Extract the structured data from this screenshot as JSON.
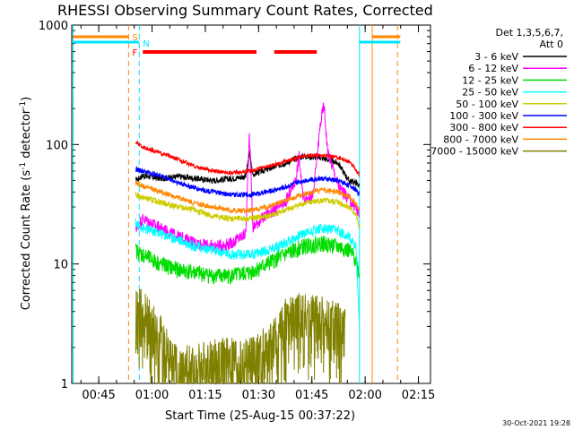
{
  "chart_data": {
    "type": "line",
    "title": "RHESSI Observing Summary Count Rates, Corrected",
    "xlabel": "Start Time (25-Aug-15 00:37:22)",
    "ylabel": "Corrected Count Rate (s",
    "ylabel_sup1": "-1",
    "ylabel_mid": " detector",
    "ylabel_sup2": "-1",
    "ylabel_end": ")",
    "y_scale": "log",
    "ylim": [
      1,
      1000
    ],
    "xlim_minutes_from_start": [
      0,
      101
    ],
    "y_ticks": [
      "1",
      "10",
      "100",
      "1000"
    ],
    "x_ticks": [
      {
        "label": "00:45",
        "t": 7.6
      },
      {
        "label": "01:00",
        "t": 22.6
      },
      {
        "label": "01:15",
        "t": 37.6
      },
      {
        "label": "01:30",
        "t": 52.6
      },
      {
        "label": "01:45",
        "t": 67.6
      },
      {
        "label": "02:00",
        "t": 82.6
      },
      {
        "label": "02:15",
        "t": 97.6
      }
    ],
    "legend_header": [
      "Det 1,3,5,6,7,",
      "Att 0"
    ],
    "legend_position": "right",
    "series": [
      {
        "name": "3 - 6 keV",
        "color": "#000000",
        "x": [
          18,
          20,
          25,
          30,
          35,
          40,
          45,
          49,
          50,
          51,
          52,
          55,
          60,
          65,
          70,
          75,
          78,
          80,
          81
        ],
        "y": [
          50,
          55,
          52,
          54,
          52,
          50,
          52,
          54,
          85,
          56,
          58,
          62,
          70,
          80,
          78,
          70,
          50,
          48,
          45
        ]
      },
      {
        "name": "6 - 12 keV",
        "color": "#ff00ff",
        "x": [
          18,
          20,
          25,
          30,
          35,
          40,
          45,
          49,
          50,
          51,
          52,
          55,
          60,
          63,
          64,
          65,
          66,
          68,
          70,
          71,
          72,
          75,
          78,
          80,
          81
        ],
        "y": [
          20,
          24,
          20,
          17,
          15,
          14,
          15,
          18,
          130,
          20,
          22,
          26,
          32,
          50,
          80,
          38,
          35,
          38,
          150,
          220,
          90,
          45,
          35,
          30,
          25
        ]
      },
      {
        "name": "12 - 25 keV",
        "color": "#00dd00",
        "x": [
          18,
          20,
          25,
          30,
          35,
          40,
          45,
          50,
          55,
          60,
          65,
          70,
          75,
          78,
          80,
          81
        ],
        "y": [
          13,
          12,
          10,
          9,
          8.5,
          8,
          8,
          8.5,
          10,
          12,
          14,
          15,
          14,
          13,
          11,
          8
        ]
      },
      {
        "name": "25 - 50 keV",
        "color": "#00ffff",
        "x": [
          18,
          20,
          25,
          30,
          35,
          40,
          45,
          50,
          55,
          60,
          65,
          70,
          75,
          78,
          80,
          81
        ],
        "y": [
          22,
          20,
          18,
          16,
          14,
          13,
          12,
          12,
          13,
          15,
          18,
          20,
          19,
          17,
          14,
          3
        ]
      },
      {
        "name": "50 - 100 keV",
        "color": "#cccc00",
        "x": [
          18,
          20,
          25,
          30,
          35,
          40,
          45,
          50,
          55,
          60,
          65,
          70,
          75,
          78,
          80,
          81
        ],
        "y": [
          38,
          36,
          33,
          30,
          28,
          25,
          24,
          24,
          25,
          28,
          32,
          34,
          33,
          30,
          26,
          20
        ]
      },
      {
        "name": "100 - 300 keV",
        "color": "#0000ff",
        "x": [
          18,
          20,
          25,
          30,
          35,
          40,
          45,
          50,
          55,
          60,
          65,
          70,
          75,
          78,
          80,
          81
        ],
        "y": [
          62,
          60,
          55,
          48,
          43,
          40,
          38,
          38,
          40,
          44,
          50,
          52,
          50,
          46,
          42,
          38
        ]
      },
      {
        "name": "300 - 800 keV",
        "color": "#ff0000",
        "x": [
          18,
          20,
          25,
          30,
          35,
          40,
          45,
          50,
          55,
          60,
          65,
          70,
          75,
          78,
          80,
          81
        ],
        "y": [
          105,
          95,
          85,
          75,
          65,
          60,
          58,
          60,
          65,
          72,
          80,
          82,
          78,
          72,
          62,
          55
        ]
      },
      {
        "name": "800 - 7000 keV",
        "color": "#ff8800",
        "x": [
          18,
          20,
          25,
          30,
          35,
          40,
          45,
          50,
          55,
          60,
          65,
          70,
          75,
          78,
          80,
          81
        ],
        "y": [
          48,
          45,
          40,
          36,
          32,
          30,
          28,
          28,
          30,
          34,
          38,
          42,
          40,
          37,
          32,
          28
        ]
      },
      {
        "name": "7000 - 15000 keV",
        "color": "#808000",
        "x": [
          18,
          20,
          22,
          24,
          26,
          28,
          30,
          35,
          40,
          45,
          50,
          55,
          58,
          60,
          62,
          65,
          68,
          70,
          72,
          75,
          77
        ],
        "y": [
          4,
          3.5,
          3,
          2.5,
          2,
          1.5,
          1.2,
          1.3,
          1.4,
          1.5,
          1.4,
          1.8,
          2.2,
          3,
          3.2,
          3.5,
          3.4,
          3.2,
          3,
          2.8,
          2.5
        ]
      }
    ],
    "flag_labels": {
      "s": "S",
      "n": "N",
      "f": "F"
    },
    "footer_date": "30-Oct-2021 19:28"
  }
}
